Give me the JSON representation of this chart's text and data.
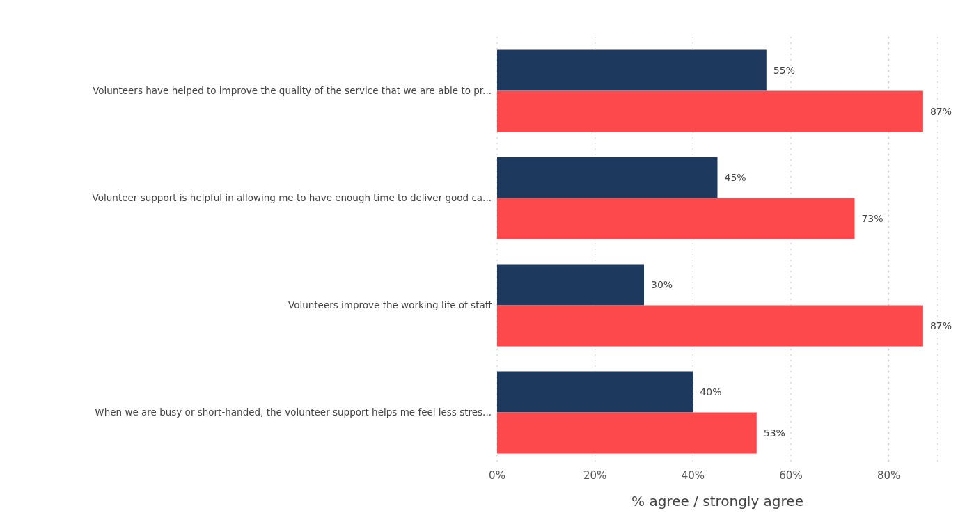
{
  "chart_data": {
    "type": "bar",
    "orientation": "horizontal",
    "xlabel": "% agree / strongly agree",
    "categories": [
      "Volunteers have helped to improve the quality of the service that we are able to pr...",
      "Volunteer support is helpful in allowing me to have enough time to deliver good ca...",
      "Volunteers improve the working life of staff",
      "When we are busy or short-handed, the volunteer support helps me feel less stres..."
    ],
    "series": [
      {
        "color": "#1d3a5e",
        "values": [
          55,
          45,
          30,
          40
        ],
        "value_labels": [
          "55%",
          "45%",
          "30%",
          "40%"
        ]
      },
      {
        "color": "#fd484c",
        "values": [
          87,
          73,
          87,
          53
        ],
        "value_labels": [
          "87%",
          "73%",
          "87%",
          "53%"
        ]
      }
    ],
    "xlim": [
      0,
      90
    ],
    "xticks": [
      {
        "value": 0,
        "label": "0%"
      },
      {
        "value": 20,
        "label": "20%"
      },
      {
        "value": 40,
        "label": "40%"
      },
      {
        "value": 60,
        "label": "60%"
      },
      {
        "value": 80,
        "label": "80%"
      }
    ],
    "grid": "x",
    "legend": false
  }
}
